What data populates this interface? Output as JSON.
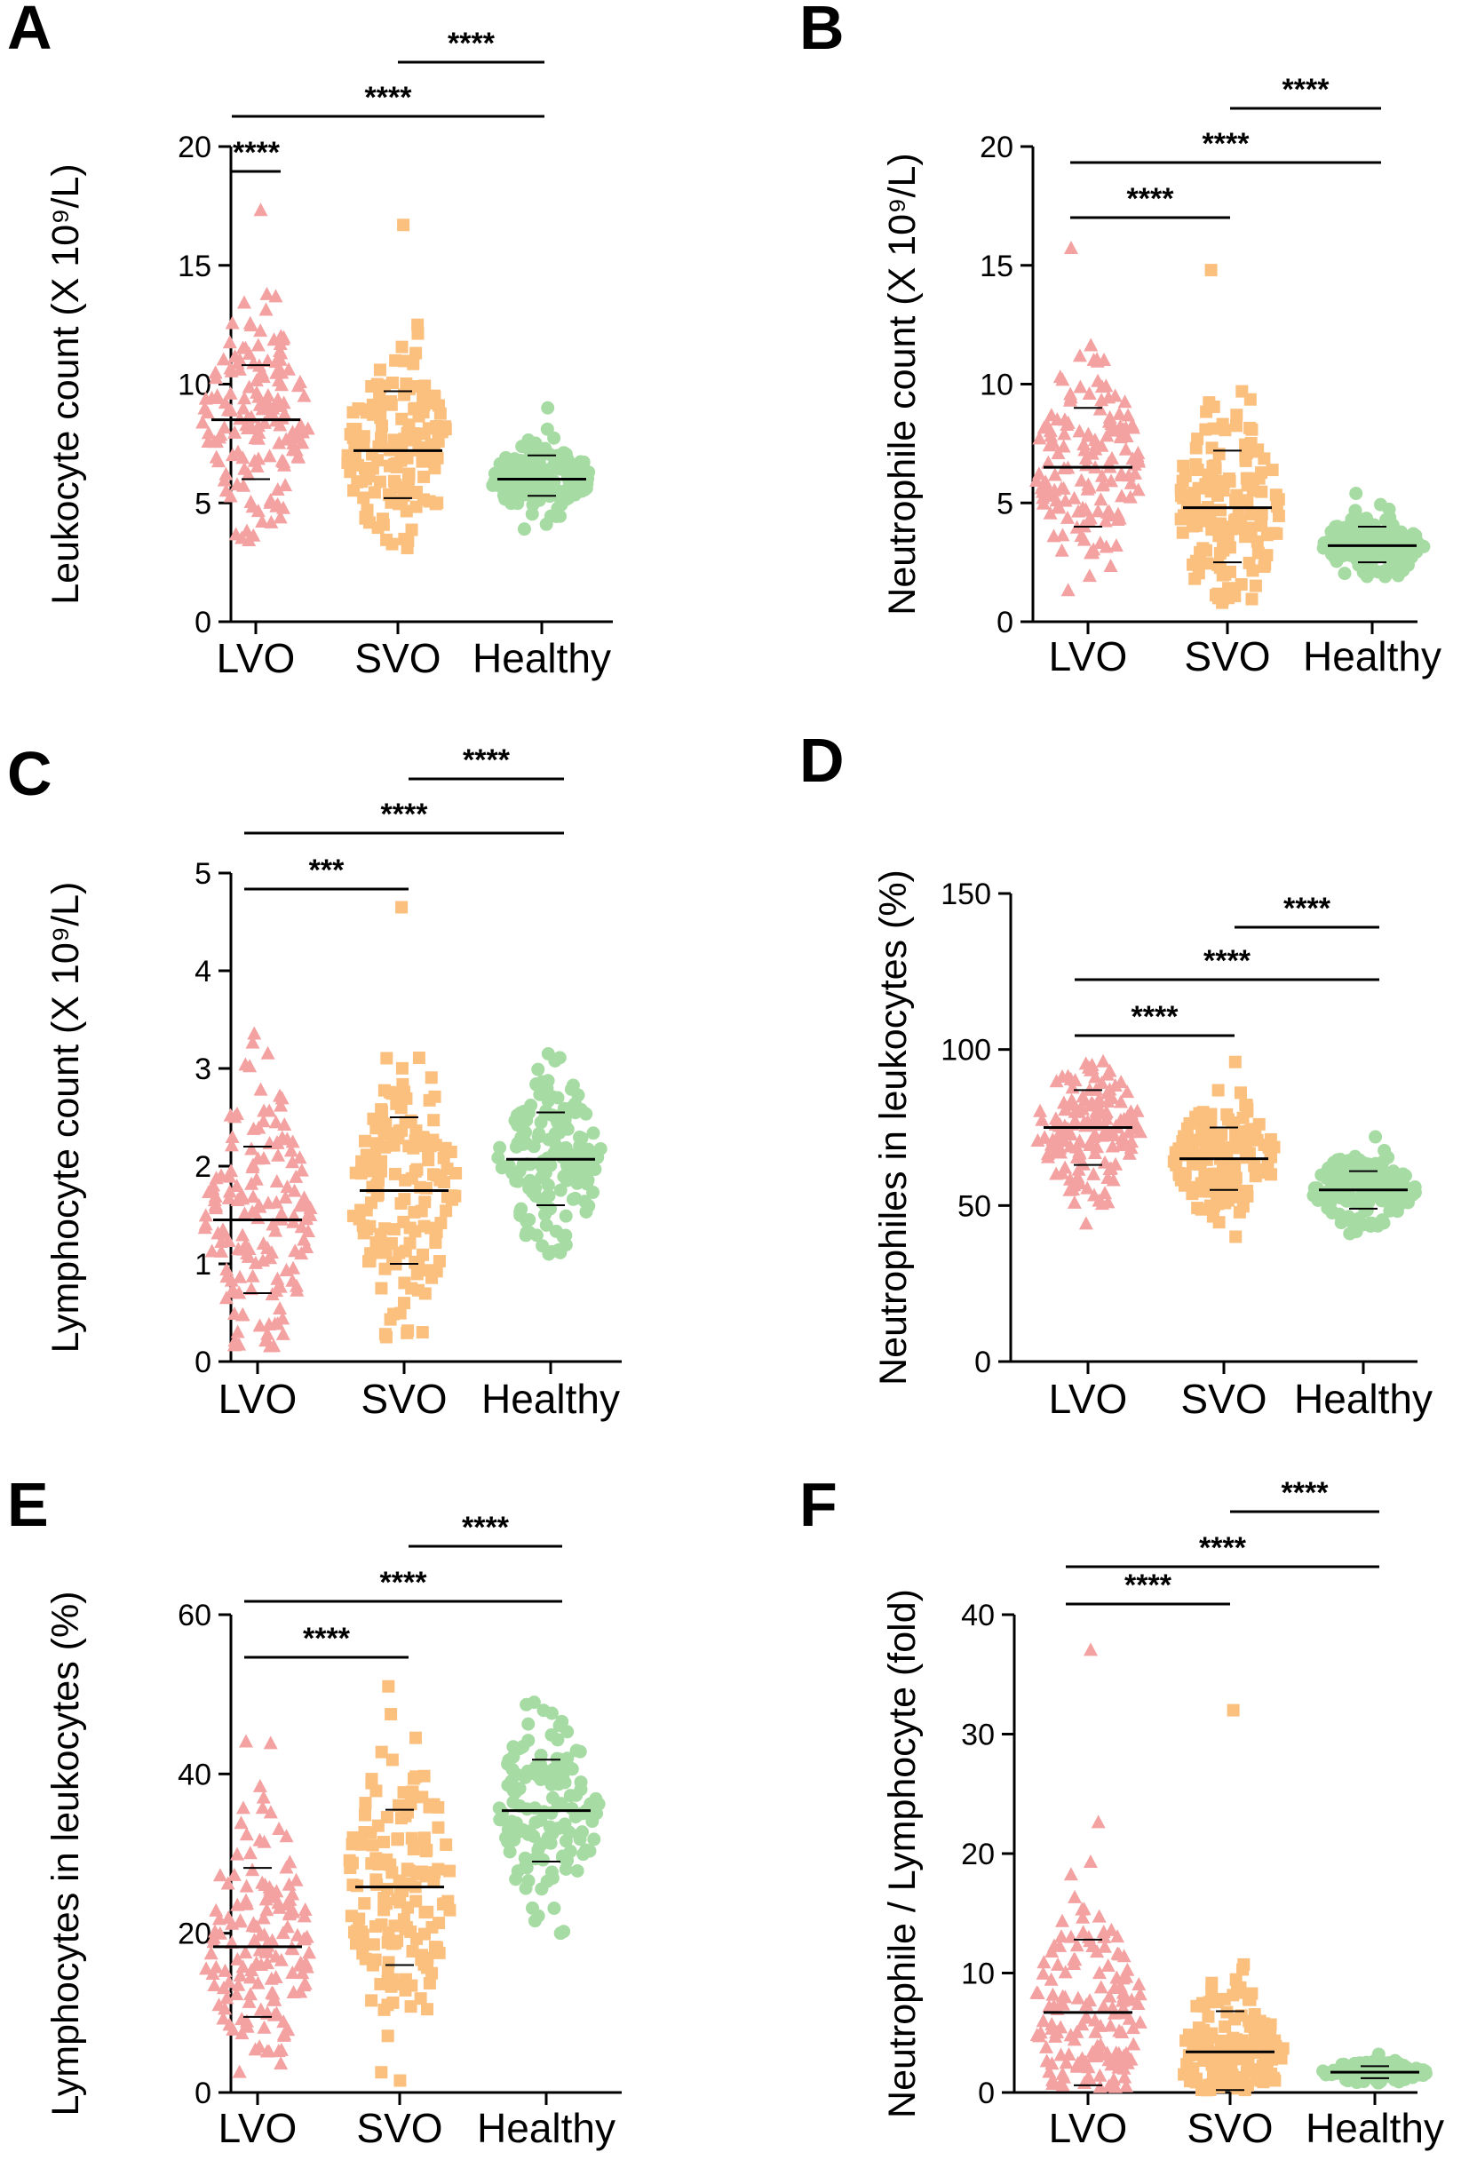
{
  "figure": {
    "colors": {
      "LVO": "#f4a1a1",
      "SVO": "#fbbf7e",
      "Healthy": "#a6dca3",
      "axis": "#000000",
      "text": "#000000"
    },
    "group_markers": {
      "LVO": "triangle",
      "SVO": "square",
      "Healthy": "circle"
    }
  },
  "chart_data": [
    {
      "panel": "A",
      "type": "scatter",
      "ylabel": "Leukocyte count (X 10⁹/L)",
      "ylim": [
        0,
        20
      ],
      "yticks": [
        0,
        5,
        10,
        15,
        20
      ],
      "categories": [
        "LVO",
        "SVO",
        "Healthy"
      ],
      "series": [
        {
          "name": "LVO",
          "mean": 8.5,
          "sd_lower": 6.0,
          "sd_upper": 10.8,
          "min": 3.4,
          "max": 17.3
        },
        {
          "name": "SVO",
          "mean": 7.2,
          "sd_lower": 5.2,
          "sd_upper": 9.7,
          "min": 3.1,
          "max": 16.7
        },
        {
          "name": "Healthy",
          "mean": 6.0,
          "sd_lower": 5.3,
          "sd_upper": 7.0,
          "min": 3.9,
          "max": 9.0
        }
      ],
      "comparisons": [
        {
          "groups": [
            "LVO",
            "SVO"
          ],
          "label": "****"
        },
        {
          "groups": [
            "LVO",
            "Healthy"
          ],
          "label": "****"
        },
        {
          "groups": [
            "SVO",
            "Healthy"
          ],
          "label": "****"
        }
      ]
    },
    {
      "panel": "B",
      "type": "scatter",
      "ylabel": "Neutrophile count (X 10⁹/L)",
      "ylim": [
        0,
        20
      ],
      "yticks": [
        0,
        5,
        10,
        15,
        20
      ],
      "categories": [
        "LVO",
        "SVO",
        "Healthy"
      ],
      "series": [
        {
          "name": "LVO",
          "mean": 6.5,
          "sd_lower": 4.0,
          "sd_upper": 9.0,
          "min": 1.3,
          "max": 15.7
        },
        {
          "name": "SVO",
          "mean": 4.8,
          "sd_lower": 2.5,
          "sd_upper": 7.2,
          "min": 0.8,
          "max": 14.8
        },
        {
          "name": "Healthy",
          "mean": 3.2,
          "sd_lower": 2.5,
          "sd_upper": 4.0,
          "min": 1.9,
          "max": 5.4
        }
      ],
      "comparisons": [
        {
          "groups": [
            "LVO",
            "SVO"
          ],
          "label": "****"
        },
        {
          "groups": [
            "LVO",
            "Healthy"
          ],
          "label": "****"
        },
        {
          "groups": [
            "SVO",
            "Healthy"
          ],
          "label": "****"
        }
      ]
    },
    {
      "panel": "C",
      "type": "scatter",
      "ylabel": "Lymphocyte count (X 10⁹/L)",
      "ylim": [
        0,
        5
      ],
      "yticks": [
        0,
        1,
        2,
        3,
        4,
        5
      ],
      "categories": [
        "LVO",
        "SVO",
        "Healthy"
      ],
      "series": [
        {
          "name": "LVO",
          "mean": 1.45,
          "sd_lower": 0.7,
          "sd_upper": 2.2,
          "min": 0.15,
          "max": 3.35
        },
        {
          "name": "SVO",
          "mean": 1.75,
          "sd_lower": 1.0,
          "sd_upper": 2.5,
          "min": 0.25,
          "max": 4.65
        },
        {
          "name": "Healthy",
          "mean": 2.07,
          "sd_lower": 1.6,
          "sd_upper": 2.55,
          "min": 1.1,
          "max": 3.15
        }
      ],
      "comparisons": [
        {
          "groups": [
            "LVO",
            "SVO"
          ],
          "label": "***"
        },
        {
          "groups": [
            "LVO",
            "Healthy"
          ],
          "label": "****"
        },
        {
          "groups": [
            "SVO",
            "Healthy"
          ],
          "label": "****"
        }
      ]
    },
    {
      "panel": "D",
      "type": "scatter",
      "ylabel": "Neutrophiles in leukocytes (%)",
      "ylim": [
        0,
        150
      ],
      "yticks": [
        0,
        50,
        100,
        150
      ],
      "categories": [
        "LVO",
        "SVO",
        "Healthy"
      ],
      "series": [
        {
          "name": "LVO",
          "mean": 75,
          "sd_lower": 63,
          "sd_upper": 87,
          "min": 44,
          "max": 96
        },
        {
          "name": "SVO",
          "mean": 65,
          "sd_lower": 55,
          "sd_upper": 75,
          "min": 40,
          "max": 96
        },
        {
          "name": "Healthy",
          "mean": 55,
          "sd_lower": 49,
          "sd_upper": 61,
          "min": 41,
          "max": 72
        }
      ],
      "comparisons": [
        {
          "groups": [
            "LVO",
            "SVO"
          ],
          "label": "****"
        },
        {
          "groups": [
            "LVO",
            "Healthy"
          ],
          "label": "****"
        },
        {
          "groups": [
            "SVO",
            "Healthy"
          ],
          "label": "****"
        }
      ]
    },
    {
      "panel": "E",
      "type": "scatter",
      "ylabel": "Lymphocytes in leukocytes (%)",
      "ylim": [
        0,
        60
      ],
      "yticks": [
        0,
        20,
        40,
        60
      ],
      "categories": [
        "LVO",
        "SVO",
        "Healthy"
      ],
      "series": [
        {
          "name": "LVO",
          "mean": 18.3,
          "sd_lower": 9.5,
          "sd_upper": 28.2,
          "min": 2.5,
          "max": 44
        },
        {
          "name": "SVO",
          "mean": 25.8,
          "sd_lower": 16.0,
          "sd_upper": 35.5,
          "min": 1.5,
          "max": 51
        },
        {
          "name": "Healthy",
          "mean": 35.4,
          "sd_lower": 29.0,
          "sd_upper": 41.8,
          "min": 20,
          "max": 49
        }
      ],
      "comparisons": [
        {
          "groups": [
            "LVO",
            "SVO"
          ],
          "label": "****"
        },
        {
          "groups": [
            "LVO",
            "Healthy"
          ],
          "label": "****"
        },
        {
          "groups": [
            "SVO",
            "Healthy"
          ],
          "label": "****"
        }
      ]
    },
    {
      "panel": "F",
      "type": "scatter",
      "ylabel": "Neutrophile / Lymphocyte (fold)",
      "ylim": [
        0,
        40
      ],
      "yticks": [
        0,
        10,
        20,
        30,
        40
      ],
      "categories": [
        "LVO",
        "SVO",
        "Healthy"
      ],
      "series": [
        {
          "name": "LVO",
          "mean": 6.7,
          "sd_lower": 0.6,
          "sd_upper": 12.8,
          "min": 0.4,
          "max": 37
        },
        {
          "name": "SVO",
          "mean": 3.4,
          "sd_lower": 0.2,
          "sd_upper": 6.8,
          "min": 0.2,
          "max": 32
        },
        {
          "name": "Healthy",
          "mean": 1.7,
          "sd_lower": 1.2,
          "sd_upper": 2.2,
          "min": 0.8,
          "max": 3.2
        }
      ],
      "comparisons": [
        {
          "groups": [
            "LVO",
            "SVO"
          ],
          "label": "****"
        },
        {
          "groups": [
            "LVO",
            "Healthy"
          ],
          "label": "****"
        },
        {
          "groups": [
            "SVO",
            "Healthy"
          ],
          "label": "****"
        }
      ]
    }
  ]
}
